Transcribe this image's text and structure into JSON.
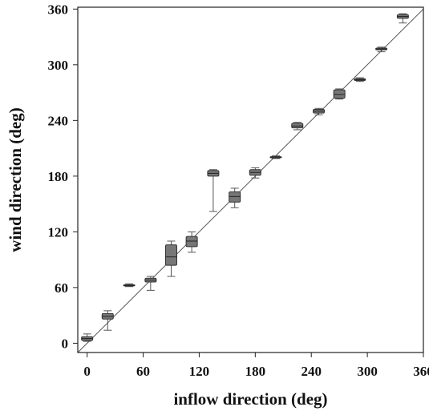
{
  "chart_data": {
    "type": "boxplot",
    "xlabel": "inflow direction (deg)",
    "ylabel": "wind direction (deg)",
    "xlim": [
      -10,
      360
    ],
    "ylim": [
      -10,
      362
    ],
    "xticks": [
      0,
      60,
      120,
      180,
      240,
      300,
      360
    ],
    "yticks": [
      0,
      60,
      120,
      180,
      240,
      300,
      360
    ],
    "reference_line": "y = x",
    "grid": false,
    "colors": {
      "box_fill": "#777777",
      "box_edge": "#333333",
      "line": "#555555",
      "axis": "#222222"
    },
    "boxes": [
      {
        "x": 0,
        "whisker_low": 2,
        "q1": 3,
        "median": 5,
        "q3": 7,
        "whisker_high": 10
      },
      {
        "x": 22,
        "whisker_low": 14,
        "q1": 26,
        "median": 29,
        "q3": 32,
        "whisker_high": 35
      },
      {
        "x": 45,
        "whisker_low": 61,
        "q1": 62,
        "median": 62,
        "q3": 63,
        "whisker_high": 64
      },
      {
        "x": 68,
        "whisker_low": 57,
        "q1": 66,
        "median": 68,
        "q3": 70,
        "whisker_high": 72
      },
      {
        "x": 90,
        "whisker_low": 72,
        "q1": 84,
        "median": 93,
        "q3": 106,
        "whisker_high": 110
      },
      {
        "x": 112,
        "whisker_low": 98,
        "q1": 104,
        "median": 110,
        "q3": 115,
        "whisker_high": 120
      },
      {
        "x": 135,
        "whisker_low": 142,
        "q1": 180,
        "median": 183,
        "q3": 186,
        "whisker_high": 187
      },
      {
        "x": 158,
        "whisker_low": 146,
        "q1": 152,
        "median": 158,
        "q3": 163,
        "whisker_high": 167
      },
      {
        "x": 180,
        "whisker_low": 178,
        "q1": 181,
        "median": 184,
        "q3": 187,
        "whisker_high": 189
      },
      {
        "x": 202,
        "whisker_low": 199,
        "q1": 200,
        "median": 200,
        "q3": 201,
        "whisker_high": 202
      },
      {
        "x": 225,
        "whisker_low": 230,
        "q1": 232,
        "median": 234,
        "q3": 237,
        "whisker_high": 238
      },
      {
        "x": 248,
        "whisker_low": 246,
        "q1": 248,
        "median": 250,
        "q3": 252,
        "whisker_high": 253
      },
      {
        "x": 270,
        "whisker_low": 263,
        "q1": 264,
        "median": 268,
        "q3": 273,
        "whisker_high": 274
      },
      {
        "x": 292,
        "whisker_low": 282,
        "q1": 283,
        "median": 284,
        "q3": 285,
        "whisker_high": 286
      },
      {
        "x": 315,
        "whisker_low": 314,
        "q1": 316,
        "median": 317,
        "q3": 318,
        "whisker_high": 319
      },
      {
        "x": 338,
        "whisker_low": 345,
        "q1": 350,
        "median": 352,
        "q3": 354,
        "whisker_high": 355
      }
    ]
  }
}
